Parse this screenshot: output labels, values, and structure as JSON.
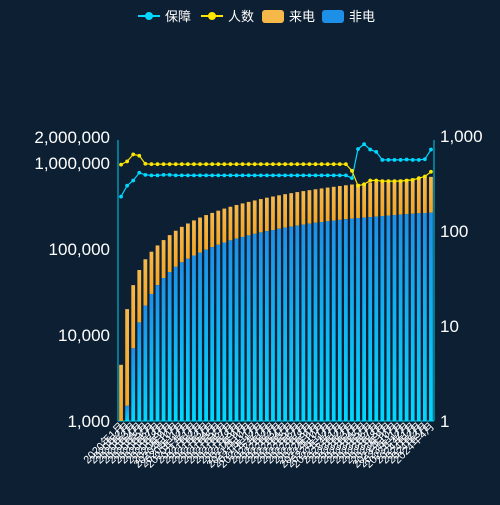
{
  "colors": {
    "background": "#0d1f33",
    "baozhang": "#00d8ff",
    "renshu": "#ffe600",
    "laidian_top": "#f7b84a",
    "laidian_bottom": "#f5a623",
    "feidian_top": "#1e8fe6",
    "feidian_bottom": "#00d8ff",
    "axis": "#00cfe8",
    "text": "#ffffff"
  },
  "chart_data": {
    "type": "bar",
    "legend": {
      "position": "top-center",
      "items": [
        {
          "key": "baozhang",
          "name": "保障",
          "icon": "line-circle"
        },
        {
          "key": "renshu",
          "name": "人数",
          "icon": "line-circle"
        },
        {
          "key": "laidian",
          "name": "来电",
          "icon": "rounded-rect"
        },
        {
          "key": "feidian",
          "name": "非电",
          "icon": "rounded-rect"
        }
      ]
    },
    "y_left": {
      "scale": "log",
      "range": [
        1000,
        2000000
      ],
      "ticks": [
        1000,
        10000,
        100000,
        1000000,
        2000000
      ],
      "tick_labels": [
        "1,000",
        "10,000",
        "100,000",
        "1,000,000",
        "2,000,000"
      ]
    },
    "y_right": {
      "scale": "log",
      "range": [
        1,
        1000
      ],
      "ticks": [
        1,
        10,
        100,
        1000
      ],
      "tick_labels": [
        "1",
        "10",
        "100",
        "1,000"
      ]
    },
    "categories": [
      "2020年1月",
      "2020年2月",
      "2020年3月",
      "2020年4月",
      "2020年5月",
      "2020年6月",
      "2020年7月",
      "2020年8月",
      "2020年9月",
      "2020年10月",
      "2020年11月",
      "2020年12月",
      "2021年1月",
      "2021年2月",
      "2021年3月",
      "2021年4月",
      "2021年5月",
      "2021年6月",
      "2021年7月",
      "2021年8月",
      "2021年9月",
      "2021年10月",
      "2021年11月",
      "2021年12月",
      "2022年1月",
      "2022年2月",
      "2022年3月",
      "2022年4月",
      "2022年5月",
      "2022年6月",
      "2022年7月",
      "2022年8月",
      "2022年9月",
      "2022年10月",
      "2022年11月",
      "2022年12月",
      "2023年1月",
      "2023年2月",
      "2023年3月",
      "2023年4月",
      "2023年5月",
      "2023年6月",
      "2023年7月",
      "2023年8月",
      "2023年9月",
      "2023年10月",
      "2023年11月",
      "2023年12月",
      "2024年1月",
      "2024年2月",
      "2024年3月",
      "2024年4月"
    ],
    "series": [
      {
        "key": "feidian",
        "name": "非电",
        "type": "bar",
        "stack": "total",
        "axis": "left",
        "values": [
          1000,
          1500,
          7000,
          14000,
          22000,
          30000,
          38000,
          46000,
          54000,
          62000,
          70000,
          77000,
          84000,
          91000,
          98000,
          105000,
          112000,
          119000,
          126000,
          132000,
          138000,
          144000,
          150000,
          156000,
          161000,
          166000,
          172000,
          177000,
          182000,
          187000,
          192000,
          197000,
          202000,
          206000,
          210000,
          214000,
          218000,
          222000,
          226000,
          229000,
          232000,
          235000,
          238000,
          242000,
          245000,
          248000,
          251000,
          254000,
          257000,
          260000,
          262000,
          265000
        ]
      },
      {
        "key": "laidian",
        "name": "来电",
        "type": "bar",
        "stack": "total",
        "axis": "left",
        "values": [
          3500,
          18500,
          31000,
          43000,
          54000,
          63000,
          72000,
          81000,
          91000,
          101000,
          111000,
          121000,
          131000,
          141000,
          150000,
          158000,
          167000,
          176000,
          184000,
          193000,
          201000,
          209000,
          217000,
          225000,
          234000,
          242000,
          249000,
          257000,
          264000,
          272000,
          279000,
          286000,
          293000,
          300000,
          308000,
          315000,
          322000,
          329000,
          336000,
          343000,
          350000,
          357000,
          364000,
          370000,
          377000,
          384000,
          391000,
          398000,
          405000,
          412000,
          419000,
          425000
        ]
      },
      {
        "key": "renshu",
        "name": "人数",
        "type": "line",
        "axis": "right",
        "values": [
          500,
          540,
          640,
          620,
          510,
          505,
          505,
          505,
          505,
          505,
          505,
          505,
          505,
          505,
          505,
          505,
          505,
          505,
          505,
          505,
          505,
          505,
          505,
          505,
          505,
          505,
          505,
          505,
          505,
          505,
          505,
          505,
          505,
          505,
          505,
          505,
          505,
          505,
          430,
          300,
          310,
          340,
          340,
          335,
          335,
          335,
          335,
          340,
          345,
          360,
          375,
          420
        ]
      },
      {
        "key": "baozhang",
        "name": "保障",
        "type": "line",
        "axis": "right",
        "values": [
          230,
          300,
          340,
          410,
          390,
          385,
          385,
          390,
          390,
          385,
          385,
          385,
          385,
          385,
          385,
          385,
          385,
          385,
          385,
          385,
          385,
          385,
          385,
          385,
          385,
          385,
          385,
          385,
          385,
          385,
          385,
          385,
          385,
          385,
          385,
          385,
          385,
          385,
          360,
          730,
          820,
          720,
          680,
          560,
          560,
          560,
          560,
          565,
          560,
          560,
          570,
          720
        ]
      }
    ]
  }
}
